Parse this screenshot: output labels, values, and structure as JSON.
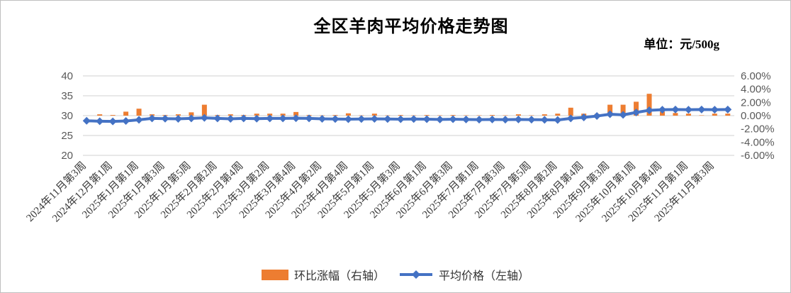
{
  "chart_data": {
    "type": "combo-bar-line",
    "title": "全区羊肉平均价格走势图",
    "unit_label": "单位：元/500g",
    "categories": [
      "2024年11月第3周",
      "2024年12月第1周",
      "2025年1月第1周",
      "2025年1月第3周",
      "2025年1月第5周",
      "2025年2月第2周",
      "2025年2月第4周",
      "2025年3月第2周",
      "2025年3月第4周",
      "2025年4月第2周",
      "2025年4月第4周",
      "2025年5月第1周",
      "2025年5月第3周",
      "2025年6月第1周",
      "2025年6月第3周",
      "2025年7月第1周",
      "2025年7月第3周",
      "2025年7月第5周",
      "2025年8月第2周",
      "2025年8月第4周",
      "2025年9月第3周",
      "2025年10月第1周",
      "2025年10月第4周",
      "2025年11月第1周",
      "2025年11月第3周"
    ],
    "category_labels_every_n_points": 2,
    "series": [
      {
        "name": "环比涨幅（右轴）",
        "type": "bar",
        "axis": "right",
        "color": "#ED7D31",
        "values": [
          0,
          0.2,
          0.1,
          0.6,
          1.05,
          0.2,
          0.1,
          0.2,
          0.5,
          1.65,
          0.1,
          0.2,
          0.1,
          0.3,
          0.3,
          0.3,
          0.55,
          0.1,
          0.05,
          0.1,
          0.35,
          0.05,
          0.3,
          0.05,
          0.1,
          0.05,
          0.1,
          0.05,
          0.1,
          0.05,
          0.05,
          0.1,
          0.05,
          0.2,
          0.05,
          0.2,
          0.3,
          1.2,
          0.3,
          0.25,
          1.65,
          1.65,
          2.1,
          3.3,
          0.6,
          0.4,
          0.3,
          0.05,
          0.3,
          0.3
        ]
      },
      {
        "name": "平均价格（左轴）",
        "type": "line",
        "axis": "left",
        "marker": "diamond",
        "color": "#4472C4",
        "values": [
          28.7,
          28.6,
          28.55,
          28.65,
          28.95,
          29.3,
          29.25,
          29.2,
          29.3,
          29.45,
          29.3,
          29.2,
          29.3,
          29.25,
          29.3,
          29.3,
          29.35,
          29.3,
          29.2,
          29.15,
          29.1,
          29.15,
          29.2,
          29.15,
          29.1,
          29.15,
          29.1,
          29.05,
          29.1,
          29.05,
          29.0,
          29.05,
          29.0,
          29.05,
          29.0,
          28.95,
          28.9,
          29.3,
          29.55,
          29.9,
          30.35,
          30.2,
          30.8,
          31.35,
          31.5,
          31.55,
          31.5,
          31.55,
          31.5,
          31.55
        ]
      }
    ],
    "left_axis": {
      "min": 20,
      "max": 40,
      "tick_labels": [
        "40",
        "35",
        "30",
        "25",
        "20"
      ]
    },
    "right_axis": {
      "min": -6,
      "max": 6,
      "tick_labels": [
        "6.00%",
        "4.00%",
        "2.00%",
        "0.00%",
        "-2.00%",
        "-4.00%",
        "-6.00%"
      ]
    },
    "grid": true,
    "gridline_color": "#D9D9D9",
    "axis_text_color": "#595959",
    "legend_position": "bottom"
  }
}
